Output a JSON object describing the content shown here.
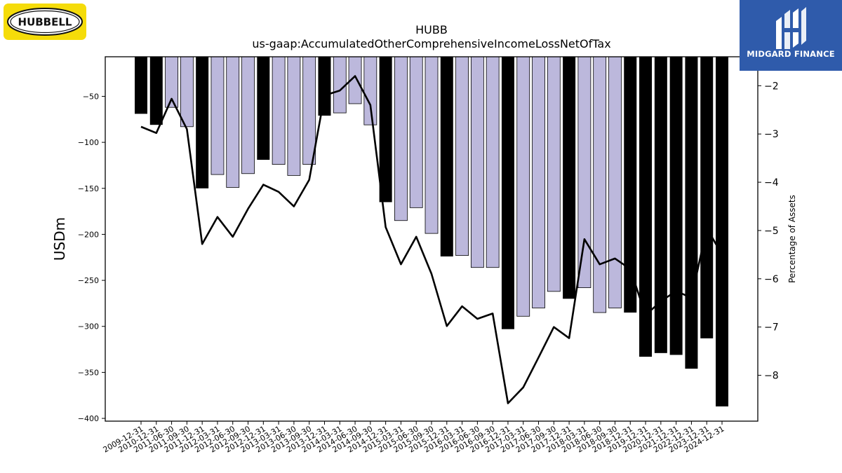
{
  "brand": {
    "left_logo_text": "HUBBELL",
    "right_logo_text": "MIDGARD FINANCE",
    "left_logo_color": "#f5dc0a",
    "right_logo_color": "#2f5bab"
  },
  "chart_data": {
    "type": "bar",
    "title": "HUBB",
    "subtitle": "us-gaap:AccumulatedOtherComprehensiveIncomeLossNetOfTax",
    "ylabel": "USDm",
    "y2label": "Percentage of Assets",
    "ylim": [
      -403,
      -7
    ],
    "y2lim": [
      -8.95,
      -1.4
    ],
    "yticks": [
      -50,
      -100,
      -150,
      -200,
      -250,
      -300,
      -350,
      -400
    ],
    "y2ticks": [
      -2,
      -3,
      -4,
      -5,
      -6,
      -7,
      -8
    ],
    "grid": false,
    "colors": {
      "annual_bar": "#000000",
      "quarter_bar": "#bcb8dc",
      "line": "#000000"
    },
    "categories": [
      "2009-12-31",
      "2010-12-31",
      "2011-06-30",
      "2011-09-30",
      "2011-12-31",
      "2012-03-31",
      "2012-06-30",
      "2012-09-30",
      "2012-12-31",
      "2013-03-31",
      "2013-06-30",
      "2013-09-30",
      "2013-12-31",
      "2014-03-31",
      "2014-06-30",
      "2014-09-30",
      "2014-12-31",
      "2015-03-31",
      "2015-06-30",
      "2015-09-30",
      "2015-12-31",
      "2016-03-31",
      "2016-06-30",
      "2016-09-30",
      "2016-12-31",
      "2017-03-31",
      "2017-06-30",
      "2017-09-30",
      "2017-12-31",
      "2018-03-31",
      "2018-06-30",
      "2018-09-30",
      "2018-12-31",
      "2019-12-31",
      "2020-12-31",
      "2021-12-31",
      "2022-12-31",
      "2023-12-31",
      "2024-12-31"
    ],
    "series": [
      {
        "kind": "bar",
        "axis": "left",
        "values": [
          -69,
          -81,
          -62,
          -83,
          -150,
          -135,
          -149,
          -134,
          -119,
          -124,
          -136,
          -124,
          -71,
          -68,
          -58,
          -81,
          -165,
          -185,
          -171,
          -199,
          -224,
          -223,
          -236,
          -236,
          -303,
          -289,
          -280,
          -262,
          -270,
          -258,
          -285,
          -280,
          -285,
          -333,
          -329,
          -331,
          -346,
          -313,
          -387
        ],
        "annual": [
          true,
          true,
          false,
          false,
          true,
          false,
          false,
          false,
          true,
          false,
          false,
          false,
          true,
          false,
          false,
          false,
          true,
          false,
          false,
          false,
          true,
          false,
          false,
          false,
          true,
          false,
          false,
          false,
          true,
          false,
          false,
          false,
          true,
          true,
          true,
          true,
          true,
          true,
          true
        ]
      },
      {
        "kind": "line",
        "axis": "right",
        "values": [
          -2.85,
          -2.98,
          -2.27,
          -2.9,
          -5.28,
          -4.72,
          -5.13,
          -4.55,
          -4.05,
          -4.2,
          -4.5,
          -3.95,
          -2.2,
          -2.1,
          -1.8,
          -2.4,
          -4.93,
          -5.7,
          -5.13,
          -5.9,
          -6.98,
          -6.57,
          -6.83,
          -6.72,
          -8.58,
          -8.25,
          -7.63,
          -7.0,
          -7.23,
          -5.18,
          -5.7,
          -5.58,
          -5.8,
          -6.75,
          -6.47,
          -6.25,
          -6.4,
          -4.95,
          -5.5
        ]
      }
    ]
  }
}
